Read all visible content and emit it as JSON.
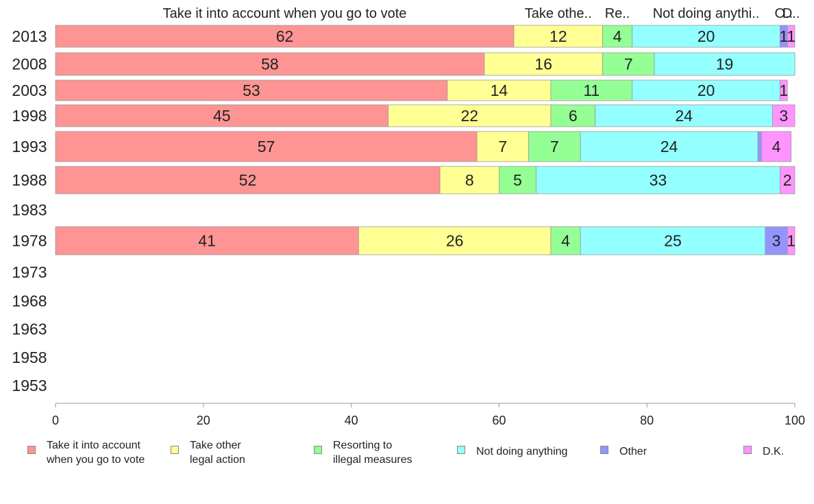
{
  "chart_data": {
    "type": "bar",
    "orientation": "horizontal",
    "stacked": true,
    "categories": [
      "2013",
      "2008",
      "2003",
      "1998",
      "1993",
      "1988",
      "1983",
      "1978",
      "1973",
      "1968",
      "1963",
      "1958",
      "1953"
    ],
    "series": [
      {
        "name": "Take it into account when you go to vote",
        "legend_label": "Take it into account\nwhen you go to vote",
        "top_label": "Take it into account when you go to vote",
        "color": "#ff9494",
        "values": [
          62,
          58,
          53,
          45,
          57,
          52,
          null,
          41,
          null,
          null,
          null,
          null,
          null
        ]
      },
      {
        "name": "Take other legal action",
        "legend_label": "Take other\nlegal action",
        "top_label": "Take othe..",
        "color": "#ffff94",
        "values": [
          12,
          16,
          14,
          22,
          7,
          8,
          null,
          26,
          null,
          null,
          null,
          null,
          null
        ]
      },
      {
        "name": "Resorting to illegal measures",
        "legend_label": "Resorting to\nillegal measures",
        "top_label": "Re..",
        "color": "#94ff94",
        "values": [
          4,
          7,
          11,
          6,
          7,
          5,
          null,
          4,
          null,
          null,
          null,
          null,
          null
        ]
      },
      {
        "name": "Not doing anything",
        "legend_label": "Not doing anything",
        "top_label": "Not doing anythi..",
        "color": "#94ffff",
        "values": [
          20,
          19,
          20,
          24,
          24,
          33,
          null,
          25,
          null,
          null,
          null,
          null,
          null
        ]
      },
      {
        "name": "Other",
        "legend_label": "Other",
        "top_label": "O..",
        "color": "#9494ff",
        "values": [
          1,
          0,
          0,
          0,
          0.5,
          0,
          null,
          3,
          null,
          null,
          null,
          null,
          null
        ]
      },
      {
        "name": "D.K.",
        "legend_label": "D.K.",
        "top_label": "D..",
        "color": "#ff94ff",
        "values": [
          1,
          0,
          1,
          3,
          4,
          2,
          null,
          1,
          null,
          null,
          null,
          null,
          null
        ]
      }
    ],
    "xlim": [
      0,
      100
    ],
    "xticks": [
      0,
      20,
      40,
      60,
      80,
      100
    ],
    "legend_position": "bottom",
    "grid": false
  }
}
